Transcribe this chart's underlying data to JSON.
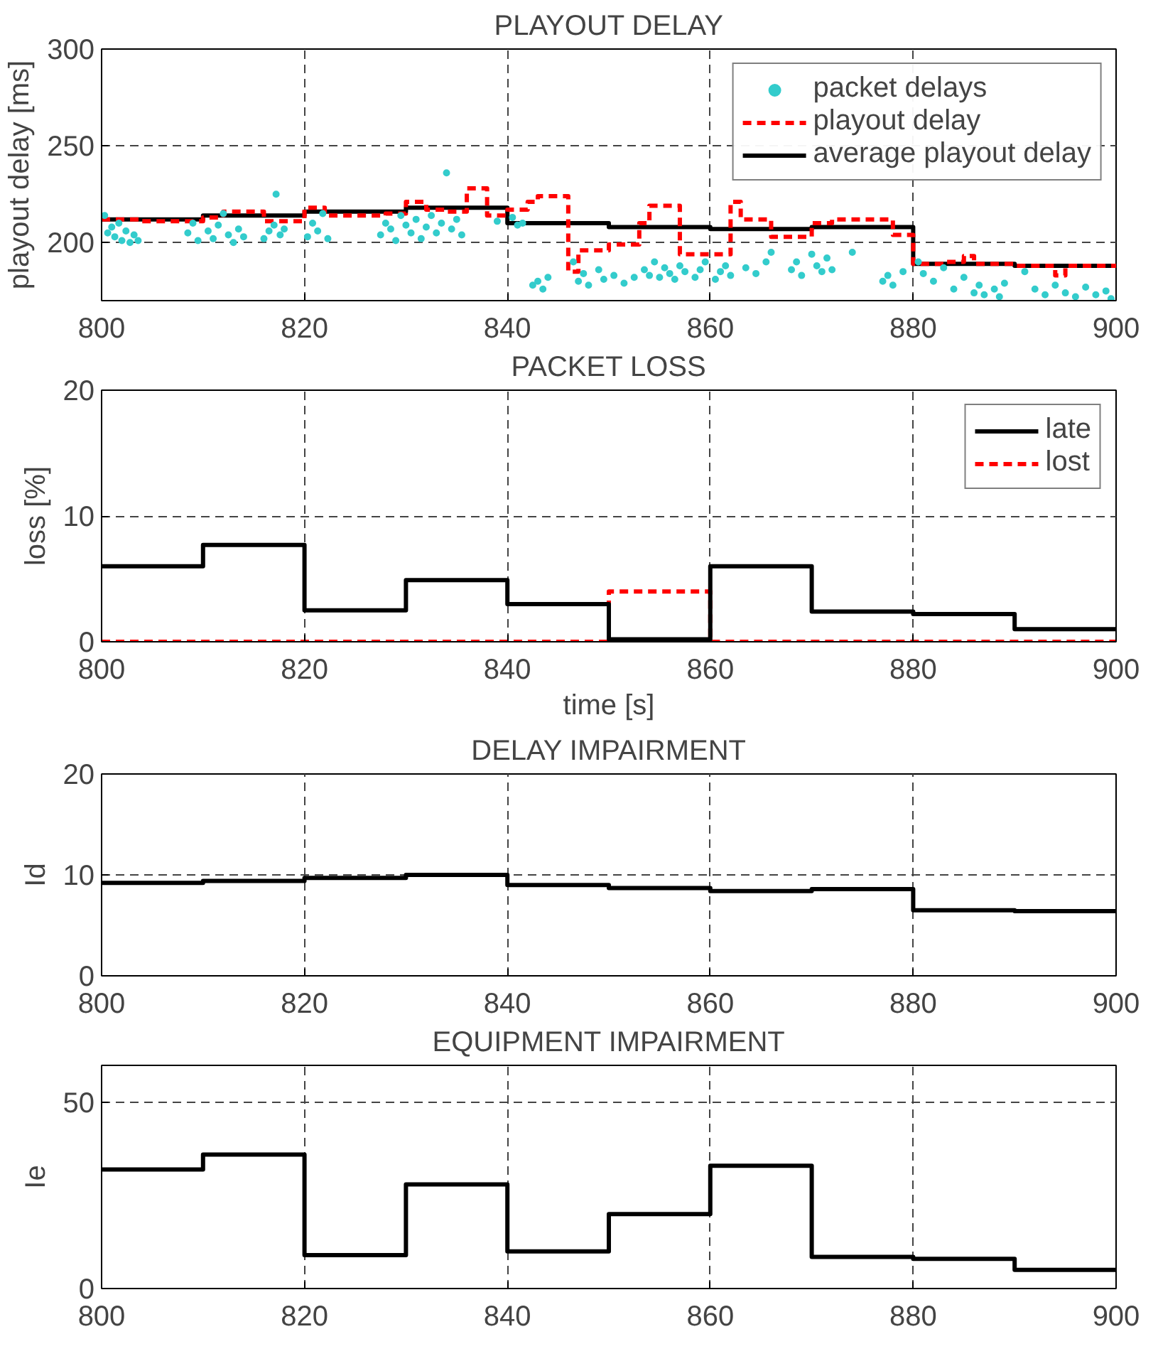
{
  "chart_data": [
    {
      "type": "step",
      "title": "PLAYOUT DELAY",
      "ylabel": "playout delay [ms]",
      "xlim": [
        800,
        900
      ],
      "xticks": [
        800,
        820,
        840,
        860,
        880,
        900
      ],
      "ylim": [
        170,
        300
      ],
      "yticks": [
        200,
        250,
        300
      ],
      "grid": true,
      "legend": "top right",
      "series": [
        {
          "name": "packet delays",
          "type": "scatter",
          "marker": "circle",
          "color": "#33cccc",
          "x": [
            800.3,
            800.6,
            801,
            801.3,
            801.7,
            802,
            802.4,
            802.8,
            803.2,
            803.6,
            808.5,
            809,
            809.5,
            810.5,
            811,
            811.5,
            812,
            812.5,
            813,
            813.5,
            814,
            816,
            816.5,
            817,
            817.2,
            817.6,
            818,
            820.3,
            820.8,
            821.3,
            821.8,
            822.3,
            827.5,
            828,
            828.5,
            829,
            829.5,
            830,
            830.5,
            831,
            831.5,
            832,
            832.5,
            833,
            833.5,
            834,
            834.5,
            835,
            835.5,
            839,
            840.5,
            841,
            841.5,
            842.5,
            843,
            843.5,
            844,
            846.5,
            847,
            847.5,
            848,
            849,
            849.5,
            850.5,
            851.5,
            852.5,
            853.5,
            854,
            854.5,
            855,
            855.5,
            856,
            856.5,
            857,
            857.5,
            858.5,
            859,
            859.5,
            860.5,
            861,
            861.5,
            862,
            863.5,
            864.5,
            865.5,
            866,
            868,
            868.5,
            869,
            870,
            870.5,
            871,
            871.5,
            872,
            874,
            877,
            877.5,
            878,
            879,
            880.5,
            881,
            882,
            883,
            884,
            885,
            886,
            886.5,
            887,
            888,
            888.5,
            889,
            891,
            892,
            893,
            894,
            895,
            896,
            897,
            898,
            899,
            899.5
          ],
          "values": [
            214,
            205,
            208,
            203,
            210,
            201,
            206,
            200,
            204,
            201,
            205,
            210,
            201,
            206,
            202,
            209,
            215,
            204,
            200,
            207,
            203,
            202,
            206,
            209,
            225,
            204,
            207,
            203,
            210,
            206,
            215,
            202,
            204,
            210,
            207,
            201,
            214,
            209,
            205,
            212,
            202,
            208,
            214,
            205,
            210,
            236,
            207,
            212,
            204,
            211,
            213,
            209,
            210,
            178,
            180,
            176,
            182,
            190,
            180,
            184,
            178,
            186,
            181,
            183,
            179,
            182,
            186,
            183,
            190,
            182,
            187,
            184,
            181,
            188,
            185,
            182,
            186,
            190,
            181,
            185,
            188,
            183,
            187,
            184,
            190,
            195,
            186,
            190,
            183,
            194,
            188,
            185,
            192,
            186,
            195,
            180,
            183,
            178,
            185,
            190,
            184,
            180,
            187,
            176,
            182,
            174,
            178,
            173,
            176,
            172,
            179,
            185,
            176,
            173,
            178,
            174,
            172,
            177,
            173,
            175,
            171
          ]
        },
        {
          "name": "playout delay",
          "type": "step",
          "line_style": "dashed",
          "color": "#ff0000",
          "x": [
            800,
            804,
            810,
            812,
            816,
            820,
            822,
            828,
            830,
            832,
            834,
            836,
            838,
            840,
            842,
            843,
            846,
            847,
            850,
            853,
            854,
            857,
            862,
            863,
            866,
            870,
            872,
            878,
            880,
            883,
            885,
            886,
            890,
            894,
            895,
            900
          ],
          "values": [
            212,
            211,
            213,
            216,
            211,
            218,
            214,
            215,
            221,
            217,
            216,
            228,
            214,
            217,
            221,
            224,
            185,
            196,
            199,
            210,
            219,
            194,
            221,
            212,
            203,
            210,
            212,
            204,
            189,
            190,
            193,
            189,
            188,
            183,
            188,
            188
          ]
        },
        {
          "name": "average playout delay",
          "type": "step",
          "line_style": "solid",
          "color": "#000000",
          "x": [
            800,
            810,
            820,
            830,
            840,
            850,
            860,
            870,
            880,
            890,
            900
          ],
          "values": [
            212,
            214,
            216,
            218,
            210,
            208,
            207,
            208,
            189,
            188,
            188
          ]
        }
      ]
    },
    {
      "type": "step",
      "title": "PACKET LOSS",
      "xlabel": "time [s]",
      "ylabel": "loss [%]",
      "xlim": [
        800,
        900
      ],
      "xticks": [
        800,
        820,
        840,
        860,
        880,
        900
      ],
      "ylim": [
        0,
        20
      ],
      "yticks": [
        0,
        10,
        20
      ],
      "grid": true,
      "legend": "top right",
      "x": [
        800,
        810,
        820,
        830,
        840,
        850,
        860,
        870,
        880,
        890,
        900
      ],
      "series": [
        {
          "name": "late",
          "line_style": "solid",
          "color": "#000000",
          "values": [
            6,
            7.7,
            2.5,
            4.9,
            3,
            0.2,
            6,
            2.4,
            2.2,
            1,
            1
          ]
        },
        {
          "name": "lost",
          "line_style": "dashed",
          "color": "#ff0000",
          "values": [
            0,
            0,
            0,
            0,
            0,
            4,
            0,
            0,
            0,
            0,
            0
          ]
        }
      ]
    },
    {
      "type": "step",
      "title": "DELAY IMPAIRMENT",
      "ylabel": "Id",
      "xlim": [
        800,
        900
      ],
      "xticks": [
        800,
        820,
        840,
        860,
        880,
        900
      ],
      "ylim": [
        0,
        20
      ],
      "yticks": [
        0,
        10,
        20
      ],
      "grid": true,
      "x": [
        800,
        810,
        820,
        830,
        840,
        850,
        860,
        870,
        880,
        890,
        900
      ],
      "series": [
        {
          "line_style": "solid",
          "color": "#000000",
          "values": [
            9.2,
            9.4,
            9.7,
            10,
            9,
            8.7,
            8.4,
            8.6,
            6.5,
            6.4,
            6.4
          ]
        }
      ]
    },
    {
      "type": "step",
      "title": "EQUIPMENT IMPAIRMENT",
      "ylabel": "Ie",
      "xlim": [
        800,
        900
      ],
      "xticks": [
        800,
        820,
        840,
        860,
        880,
        900
      ],
      "ylim": [
        0,
        60
      ],
      "yticks": [
        0,
        50
      ],
      "grid": true,
      "x": [
        800,
        810,
        820,
        830,
        840,
        850,
        860,
        870,
        880,
        890,
        900
      ],
      "series": [
        {
          "line_style": "solid",
          "color": "#000000",
          "values": [
            32,
            36,
            9,
            28,
            10,
            20,
            33,
            8.5,
            8,
            5,
            5
          ]
        }
      ]
    }
  ]
}
